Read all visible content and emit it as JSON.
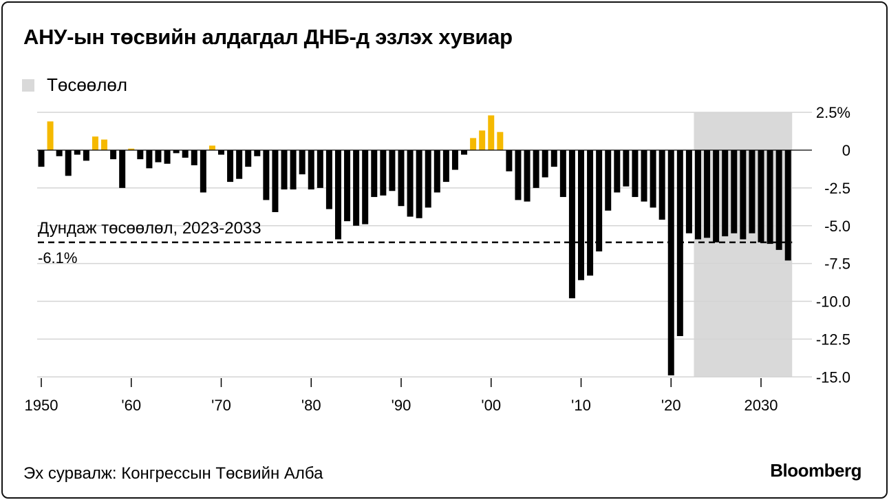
{
  "title": "АНУ-ын төсвийн алдагдал ДНБ-д эзлэх хувиар",
  "legend": {
    "label": "Төсөөлөл"
  },
  "source": "Эх сурвалж: Конгрессын Төсвийн Алба",
  "logo": "Bloomberg",
  "colors": {
    "positive": "#f5b900",
    "negative": "#000000",
    "projection": "#d9d9d9",
    "grid": "#d4d4d4"
  },
  "chart_data": {
    "type": "bar",
    "title": "АНУ-ын төсвийн алдагдал ДНБ-д эзлэх хувиар",
    "xlabel": "",
    "ylabel": "",
    "ylim": [
      -15,
      2.5
    ],
    "y_ticks": [
      2.5,
      0,
      -2.5,
      -5,
      -7.5,
      -10,
      -12.5,
      -15
    ],
    "y_tick_labels": [
      "2.5%",
      "0",
      "-2.5",
      "-5.0",
      "-7.5",
      "-10.0",
      "-12.5",
      "-15.0"
    ],
    "x_ticks": [
      1950,
      1960,
      1970,
      1980,
      1990,
      2000,
      2010,
      2020,
      2030
    ],
    "x_tick_labels": [
      "1950",
      "'60",
      "'70",
      "'80",
      "'90",
      "'00",
      "'10",
      "'20",
      "2030"
    ],
    "projection_range": [
      2023,
      2033
    ],
    "reference_line": {
      "value": -6.1,
      "label": "Дундаж төсөөлөл, 2023-2033",
      "value_label": "-6.1%"
    },
    "start_year": 1950,
    "values": [
      -1.1,
      1.9,
      -0.4,
      -1.7,
      -0.3,
      -0.7,
      0.9,
      0.7,
      -0.6,
      -2.5,
      0.1,
      -0.6,
      -1.2,
      -0.8,
      -0.9,
      -0.2,
      -0.5,
      -1.0,
      -2.8,
      0.3,
      -0.3,
      -2.1,
      -1.9,
      -1.1,
      -0.4,
      -3.3,
      -4.1,
      -2.6,
      -2.6,
      -1.6,
      -2.6,
      -2.5,
      -3.9,
      -5.9,
      -4.7,
      -5.0,
      -4.9,
      -3.1,
      -3.0,
      -2.7,
      -3.7,
      -4.4,
      -4.5,
      -3.8,
      -2.8,
      -2.1,
      -1.3,
      -0.3,
      0.8,
      1.3,
      2.3,
      1.2,
      -1.4,
      -3.3,
      -3.4,
      -2.5,
      -1.8,
      -1.1,
      -3.1,
      -9.8,
      -8.6,
      -8.3,
      -6.7,
      -4.0,
      -2.8,
      -2.4,
      -3.1,
      -3.4,
      -3.8,
      -4.6,
      -14.9,
      -12.3,
      -5.5,
      -5.9,
      -5.8,
      -6.1,
      -5.7,
      -5.5,
      -5.9,
      -5.5,
      -6.1,
      -6.2,
      -6.6,
      -7.3
    ]
  }
}
